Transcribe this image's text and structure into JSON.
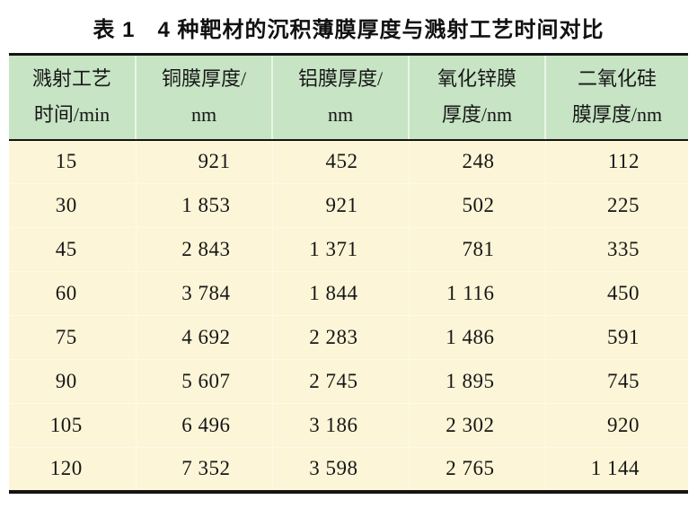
{
  "title": "表 1　4 种靶材的沉积薄膜厚度与溅射工艺时间对比",
  "colors": {
    "header_bg": "#c7e4c4",
    "body_bg": "#fcf5d7",
    "rule": "#141414",
    "header_separator": "#e9f5e6",
    "body_separator": "#fefae8"
  },
  "table": {
    "headers": [
      {
        "line1": "溅射工艺",
        "line2": "时间/min"
      },
      {
        "line1": "铜膜厚度/",
        "line2": "nm"
      },
      {
        "line1": "铝膜厚度/",
        "line2": "nm"
      },
      {
        "line1": "氧化锌膜",
        "line2": "厚度/nm"
      },
      {
        "line1": "二氧化硅",
        "line2": "膜厚度/nm"
      }
    ],
    "rows": [
      [
        "15",
        "921",
        "452",
        "248",
        "112"
      ],
      [
        "30",
        "1 853",
        "921",
        "502",
        "225"
      ],
      [
        "45",
        "2 843",
        "1 371",
        "781",
        "335"
      ],
      [
        "60",
        "3 784",
        "1 844",
        "1 116",
        "450"
      ],
      [
        "75",
        "4 692",
        "2 283",
        "1 486",
        "591"
      ],
      [
        "90",
        "5 607",
        "2 745",
        "1 895",
        "745"
      ],
      [
        "105",
        "6 496",
        "3 186",
        "2 302",
        "920"
      ],
      [
        "120",
        "7 352",
        "3 598",
        "2 765",
        "1 144"
      ]
    ]
  },
  "chart_data": {
    "type": "table",
    "title": "表1 4种靶材的沉积薄膜厚度与溅射工艺时间对比",
    "columns": [
      "溅射工艺时间/min",
      "铜膜厚度/nm",
      "铝膜厚度/nm",
      "氧化锌膜厚度/nm",
      "二氧化硅膜厚度/nm"
    ],
    "x": [
      15,
      30,
      45,
      60,
      75,
      90,
      105,
      120
    ],
    "xlabel": "溅射工艺时间/min",
    "series": [
      {
        "name": "铜膜厚度/nm",
        "values": [
          921,
          1853,
          2843,
          3784,
          4692,
          5607,
          6496,
          7352
        ]
      },
      {
        "name": "铝膜厚度/nm",
        "values": [
          452,
          921,
          1371,
          1844,
          2283,
          2745,
          3186,
          3598
        ]
      },
      {
        "name": "氧化锌膜厚度/nm",
        "values": [
          248,
          502,
          781,
          1116,
          1486,
          1895,
          2302,
          2765
        ]
      },
      {
        "name": "二氧化硅膜厚度/nm",
        "values": [
          112,
          225,
          335,
          450,
          591,
          745,
          920,
          1144
        ]
      }
    ]
  }
}
